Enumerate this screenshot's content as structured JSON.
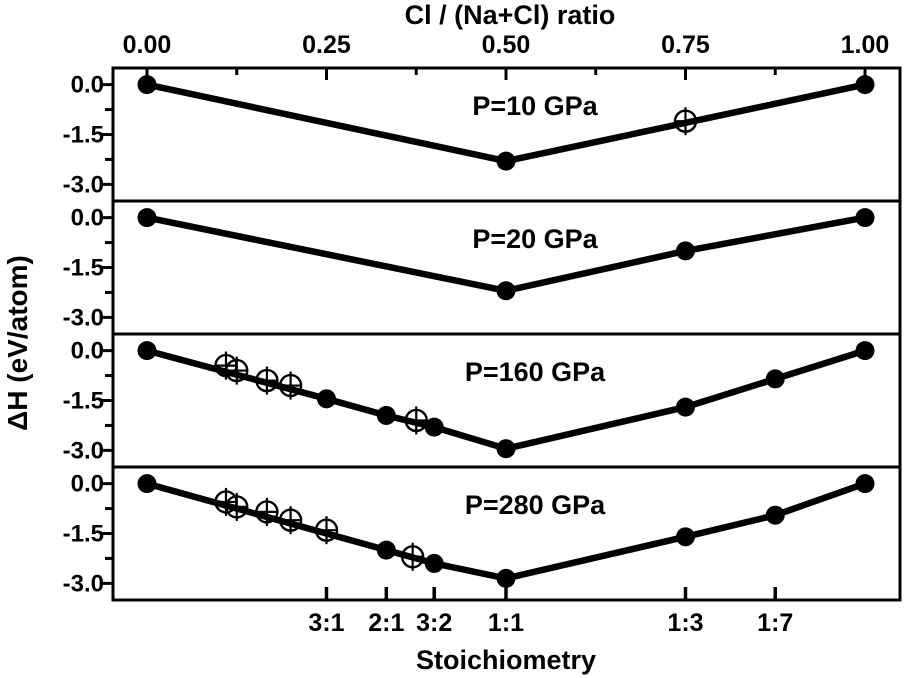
{
  "chart_data": {
    "type": "line",
    "description": "Convex-hull formation enthalpy diagram of Na-Cl compounds at four pressures; filled circles are stable stoichiometries on the hull, crossed open circles are metastable points",
    "colors": {
      "foreground": "#000000",
      "background": "#ffffff"
    },
    "marker_styles": {
      "stable": "filled-circle-marker",
      "metastable": "crossed-open-circle-marker"
    },
    "top_axis": {
      "title": "Cl / (Na+Cl) ratio",
      "ticks": [
        {
          "v": 0.0,
          "label": "0.00"
        },
        {
          "v": 0.25,
          "label": "0.25"
        },
        {
          "v": 0.5,
          "label": "0.50"
        },
        {
          "v": 0.75,
          "label": "0.75"
        },
        {
          "v": 1.0,
          "label": "1.00"
        }
      ],
      "minor_ticks": [
        0.125,
        0.375,
        0.625,
        0.875
      ]
    },
    "bottom_axis": {
      "title": "Stoichiometry",
      "ticks": [
        {
          "v": 0.25,
          "label": "3:1"
        },
        {
          "v": 0.3333,
          "label": "2:1"
        },
        {
          "v": 0.4,
          "label": "3:2"
        },
        {
          "v": 0.5,
          "label": "1:1"
        },
        {
          "v": 0.75,
          "label": "1:3"
        },
        {
          "v": 0.875,
          "label": "1:7"
        }
      ]
    },
    "y_axis": {
      "title": "ΔH (eV/atom)",
      "major_ticks": [
        {
          "v": 0.0,
          "label": "0.0"
        },
        {
          "v": -1.5,
          "label": "-1.5"
        },
        {
          "v": -3.0,
          "label": "-3.0"
        }
      ],
      "minor_ticks": [
        -0.75,
        -2.25
      ],
      "range_per_panel": [
        0.5,
        -3.5
      ]
    },
    "x_range": [
      -0.047,
      1.049
    ],
    "panels": [
      {
        "label": "P=10 GPa",
        "hull": [
          [
            0,
            0
          ],
          [
            0.5,
            -2.3
          ],
          [
            1,
            0
          ]
        ],
        "stable_points": [
          [
            0,
            0
          ],
          [
            0.5,
            -2.3
          ],
          [
            1,
            0
          ]
        ],
        "metastable_points": [
          [
            0.75,
            -1.1
          ]
        ]
      },
      {
        "label": "P=20 GPa",
        "hull": [
          [
            0,
            0
          ],
          [
            0.5,
            -2.2
          ],
          [
            0.75,
            -1.0
          ],
          [
            1,
            0
          ]
        ],
        "stable_points": [
          [
            0,
            0
          ],
          [
            0.5,
            -2.2
          ],
          [
            0.75,
            -1.0
          ],
          [
            1,
            0
          ]
        ],
        "metastable_points": []
      },
      {
        "label": "P=160 GPa",
        "hull": [
          [
            0,
            0
          ],
          [
            0.25,
            -1.45
          ],
          [
            0.3333,
            -1.95
          ],
          [
            0.4,
            -2.3
          ],
          [
            0.5,
            -2.95
          ],
          [
            0.75,
            -1.7
          ],
          [
            0.875,
            -0.85
          ],
          [
            1,
            0
          ]
        ],
        "stable_points": [
          [
            0,
            0
          ],
          [
            0.25,
            -1.45
          ],
          [
            0.3333,
            -1.95
          ],
          [
            0.4,
            -2.3
          ],
          [
            0.5,
            -2.95
          ],
          [
            0.75,
            -1.7
          ],
          [
            0.875,
            -0.85
          ],
          [
            1,
            0
          ]
        ],
        "metastable_points": [
          [
            0.11,
            -0.45
          ],
          [
            0.125,
            -0.6
          ],
          [
            0.167,
            -0.9
          ],
          [
            0.2,
            -1.05
          ],
          [
            0.375,
            -2.1
          ]
        ]
      },
      {
        "label": "P=280 GPa",
        "hull": [
          [
            0,
            0
          ],
          [
            0.3333,
            -2.0
          ],
          [
            0.4,
            -2.4
          ],
          [
            0.5,
            -2.85
          ],
          [
            0.75,
            -1.6
          ],
          [
            0.875,
            -0.95
          ],
          [
            1,
            0
          ]
        ],
        "stable_points": [
          [
            0,
            0
          ],
          [
            0.3333,
            -2.0
          ],
          [
            0.4,
            -2.4
          ],
          [
            0.5,
            -2.85
          ],
          [
            0.75,
            -1.6
          ],
          [
            0.875,
            -0.95
          ],
          [
            1,
            0
          ]
        ],
        "metastable_points": [
          [
            0.11,
            -0.55
          ],
          [
            0.125,
            -0.7
          ],
          [
            0.167,
            -0.85
          ],
          [
            0.2,
            -1.1
          ],
          [
            0.25,
            -1.4
          ],
          [
            0.37,
            -2.2
          ]
        ]
      }
    ]
  }
}
